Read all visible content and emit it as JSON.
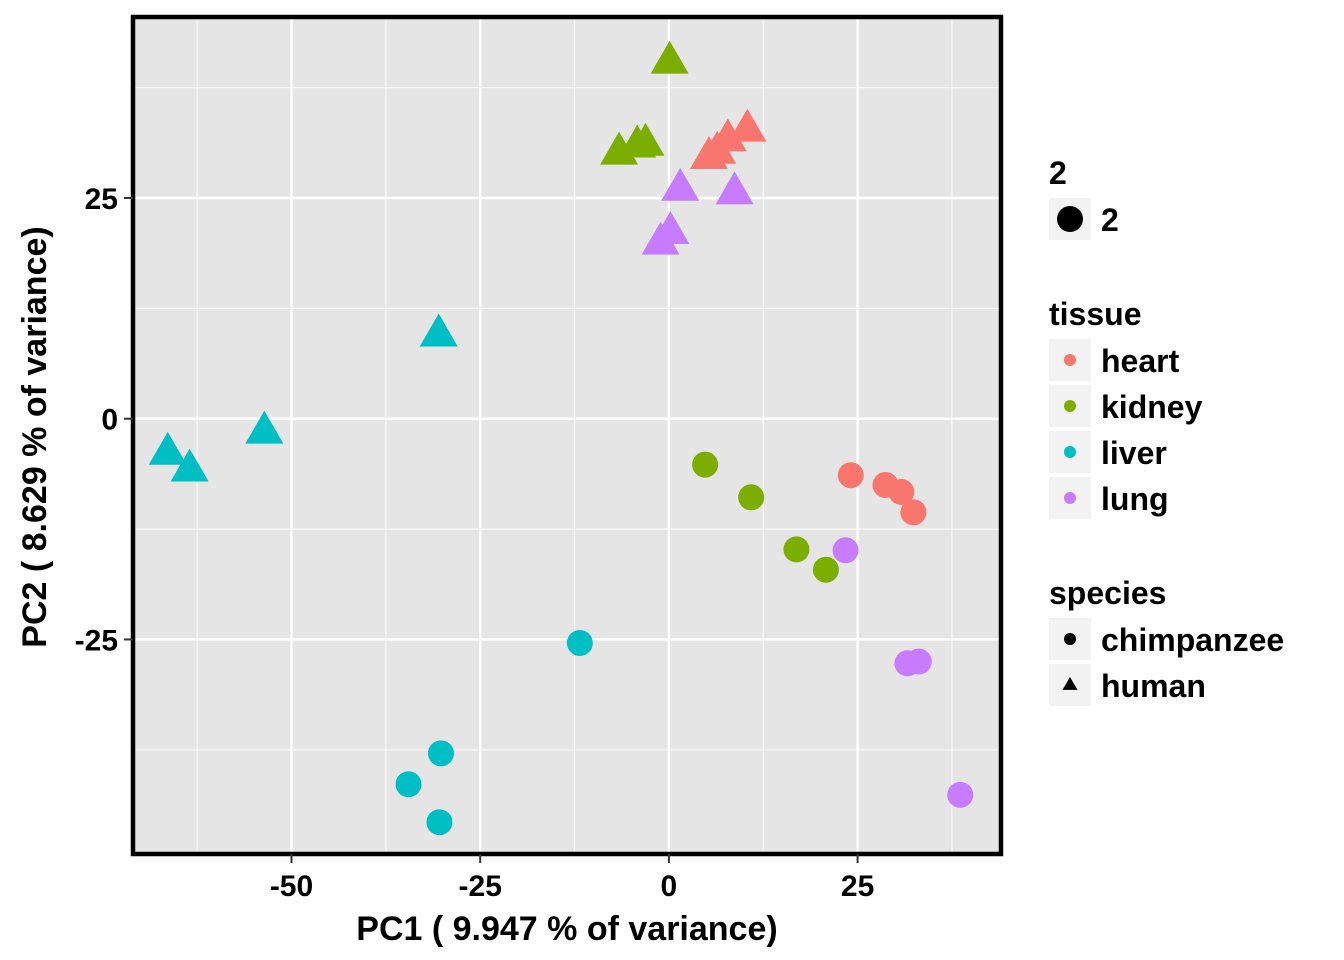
{
  "chart_data": {
    "type": "scatter",
    "xlabel": "PC1 ( 9.947 % of variance)",
    "ylabel": "PC2 ( 8.629 % of variance)",
    "xlim": [
      -71,
      44
    ],
    "ylim": [
      -49.3,
      45.5
    ],
    "x_ticks": [
      -50,
      -25,
      0,
      25
    ],
    "y_ticks": [
      -25,
      0,
      25
    ],
    "grid": true,
    "legend_position": "right",
    "colors": {
      "heart": "#F8766D",
      "kidney": "#7CAE00",
      "liver": "#00BFC4",
      "lung": "#C77CFF",
      "panel_background": "#E5E5E5",
      "grid": "#FFFFFF"
    },
    "legends": [
      {
        "title": "2",
        "entries": [
          {
            "label": "2",
            "shape": "circle",
            "color": "#000000"
          }
        ]
      },
      {
        "title": "tissue",
        "entries": [
          {
            "label": "heart",
            "shape": "circle",
            "color": "#F8766D"
          },
          {
            "label": "kidney",
            "shape": "circle",
            "color": "#7CAE00"
          },
          {
            "label": "liver",
            "shape": "circle",
            "color": "#00BFC4"
          },
          {
            "label": "lung",
            "shape": "circle",
            "color": "#C77CFF"
          }
        ]
      },
      {
        "title": "species",
        "entries": [
          {
            "label": "chimpanzee",
            "shape": "circle",
            "color": "#000000"
          },
          {
            "label": "human",
            "shape": "triangle",
            "color": "#000000"
          }
        ]
      }
    ],
    "points": [
      {
        "x": 0.1,
        "y": 40.5,
        "tissue": "kidney",
        "species": "human"
      },
      {
        "x": -6.6,
        "y": 30.2,
        "tissue": "kidney",
        "species": "human"
      },
      {
        "x": -4.2,
        "y": 31.0,
        "tissue": "kidney",
        "species": "human"
      },
      {
        "x": -3.1,
        "y": 31.2,
        "tissue": "kidney",
        "species": "human"
      },
      {
        "x": 10.4,
        "y": 32.8,
        "tissue": "heart",
        "species": "human"
      },
      {
        "x": 7.8,
        "y": 31.7,
        "tissue": "heart",
        "species": "human"
      },
      {
        "x": 6.4,
        "y": 30.3,
        "tissue": "heart",
        "species": "human"
      },
      {
        "x": 5.3,
        "y": 29.7,
        "tissue": "heart",
        "species": "human"
      },
      {
        "x": 1.5,
        "y": 26.1,
        "tissue": "lung",
        "species": "human"
      },
      {
        "x": 8.7,
        "y": 25.7,
        "tissue": "lung",
        "species": "human"
      },
      {
        "x": 0.2,
        "y": 21.2,
        "tissue": "lung",
        "species": "human"
      },
      {
        "x": -1.1,
        "y": 20.0,
        "tissue": "lung",
        "species": "human"
      },
      {
        "x": -30.5,
        "y": 9.6,
        "tissue": "liver",
        "species": "human"
      },
      {
        "x": -53.6,
        "y": -1.4,
        "tissue": "liver",
        "species": "human"
      },
      {
        "x": -66.4,
        "y": -3.8,
        "tissue": "liver",
        "species": "human"
      },
      {
        "x": -63.5,
        "y": -5.7,
        "tissue": "liver",
        "species": "human"
      },
      {
        "x": 4.8,
        "y": -5.2,
        "tissue": "kidney",
        "species": "chimpanzee"
      },
      {
        "x": 10.9,
        "y": -8.9,
        "tissue": "kidney",
        "species": "chimpanzee"
      },
      {
        "x": 16.9,
        "y": -14.8,
        "tissue": "kidney",
        "species": "chimpanzee"
      },
      {
        "x": 20.8,
        "y": -17.1,
        "tissue": "kidney",
        "species": "chimpanzee"
      },
      {
        "x": 24.1,
        "y": -6.4,
        "tissue": "heart",
        "species": "chimpanzee"
      },
      {
        "x": 28.7,
        "y": -7.5,
        "tissue": "heart",
        "species": "chimpanzee"
      },
      {
        "x": 30.8,
        "y": -8.3,
        "tissue": "heart",
        "species": "chimpanzee"
      },
      {
        "x": 32.4,
        "y": -10.6,
        "tissue": "heart",
        "species": "chimpanzee"
      },
      {
        "x": 23.4,
        "y": -14.9,
        "tissue": "lung",
        "species": "chimpanzee"
      },
      {
        "x": 31.6,
        "y": -27.7,
        "tissue": "lung",
        "species": "chimpanzee"
      },
      {
        "x": 33.1,
        "y": -27.5,
        "tissue": "lung",
        "species": "chimpanzee"
      },
      {
        "x": 38.6,
        "y": -42.6,
        "tissue": "lung",
        "species": "chimpanzee"
      },
      {
        "x": -11.8,
        "y": -25.4,
        "tissue": "liver",
        "species": "chimpanzee"
      },
      {
        "x": -30.2,
        "y": -37.9,
        "tissue": "liver",
        "species": "chimpanzee"
      },
      {
        "x": -34.5,
        "y": -41.4,
        "tissue": "liver",
        "species": "chimpanzee"
      },
      {
        "x": -30.4,
        "y": -45.7,
        "tissue": "liver",
        "species": "chimpanzee"
      }
    ]
  }
}
